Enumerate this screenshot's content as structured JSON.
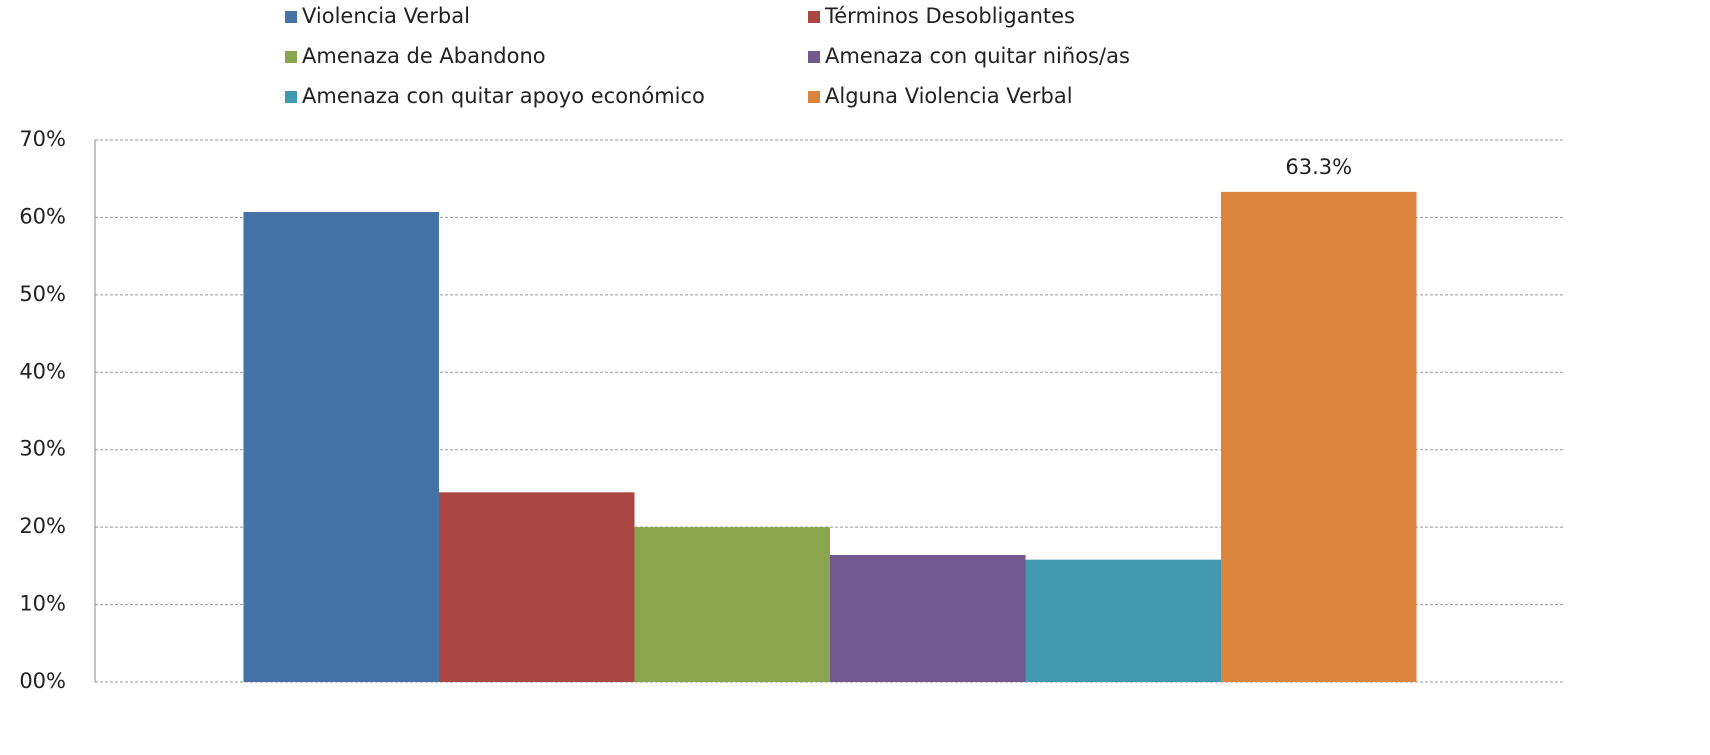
{
  "chart_data": {
    "type": "bar",
    "categories": [
      null
    ],
    "series": [
      {
        "name": "Violencia Verbal",
        "color": "#4572a7",
        "values": [
          60.7
        ]
      },
      {
        "name": "Términos Desobligantes",
        "color": "#aa4643",
        "values": [
          24.5
        ]
      },
      {
        "name": "Amenaza de Abandono",
        "color": "#89a54e",
        "values": [
          20.0
        ]
      },
      {
        "name": "Amenaza con quitar niños/as",
        "color": "#71588f",
        "values": [
          16.4
        ]
      },
      {
        "name": "Amenaza con quitar apoyo económico",
        "color": "#4198af",
        "values": [
          15.8
        ]
      },
      {
        "name": "Alguna Violencia Verbal",
        "color": "#db843d",
        "values": [
          63.3
        ],
        "value_labels": [
          "63.3%"
        ]
      }
    ],
    "ylim": [
      0,
      70
    ],
    "yticks": [
      {
        "value": 0,
        "label": "00%"
      },
      {
        "value": 10,
        "label": "10%"
      },
      {
        "value": 20,
        "label": "20%"
      },
      {
        "value": 30,
        "label": "30%"
      },
      {
        "value": 40,
        "label": "40%"
      },
      {
        "value": 50,
        "label": "50%"
      },
      {
        "value": 60,
        "label": "60%"
      },
      {
        "value": 70,
        "label": "70%"
      }
    ],
    "grid": true,
    "legend": "top"
  }
}
